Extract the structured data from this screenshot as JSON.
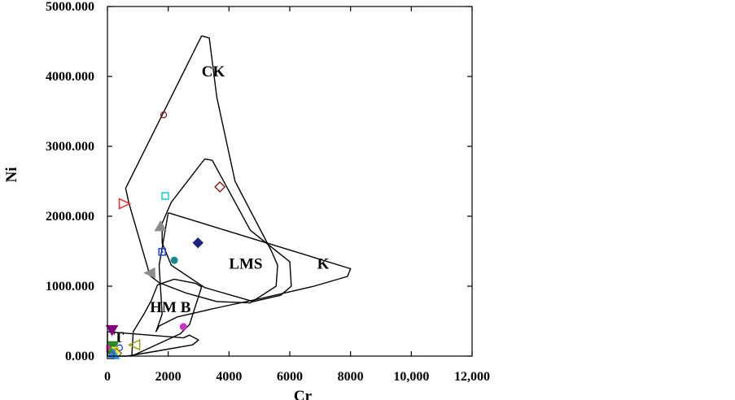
{
  "chart_data": {
    "type": "scatter",
    "title": "",
    "xlabel": "Cr",
    "ylabel": "Ni",
    "xlim": [
      0,
      12000
    ],
    "ylim": [
      0,
      5000
    ],
    "x_ticks": [
      0,
      2000,
      4000,
      6000,
      8000,
      10000,
      12000
    ],
    "x_tick_labels": [
      "0",
      "2000",
      "4000",
      "6000",
      "8000",
      "10,000",
      "12,000"
    ],
    "y_ticks": [
      0,
      1000,
      2000,
      3000,
      4000,
      5000
    ],
    "y_tick_labels": [
      "0.000",
      "1000.000",
      "2000.000",
      "3000.000",
      "4000.000",
      "5000.000"
    ],
    "grid": false,
    "regions": [
      {
        "label": "CK",
        "label_at": [
          3100,
          4000
        ],
        "points": [
          [
            3100,
            4580
          ],
          [
            3350,
            4550
          ],
          [
            3600,
            3700
          ],
          [
            4200,
            2500
          ],
          [
            5400,
            1500
          ],
          [
            5600,
            1300
          ],
          [
            5550,
            1000
          ],
          [
            4700,
            760
          ],
          [
            3600,
            780
          ],
          [
            2600,
            900
          ],
          [
            1700,
            1050
          ],
          [
            1400,
            1150
          ],
          [
            700,
            2200
          ],
          [
            600,
            2400
          ],
          [
            3100,
            4580
          ]
        ]
      },
      {
        "label": "LMS",
        "label_at": [
          4000,
          1250
        ],
        "points": [
          [
            3200,
            2820
          ],
          [
            3450,
            2800
          ],
          [
            4700,
            1800
          ],
          [
            6000,
            1350
          ],
          [
            6050,
            1000
          ],
          [
            5700,
            870
          ],
          [
            4800,
            780
          ],
          [
            3200,
            980
          ],
          [
            2100,
            1300
          ],
          [
            1800,
            1620
          ],
          [
            1800,
            1900
          ],
          [
            2100,
            2200
          ],
          [
            3200,
            2820
          ]
        ]
      },
      {
        "label": "K",
        "label_at": [
          6900,
          1250
        ],
        "points": [
          [
            2000,
            2050
          ],
          [
            8000,
            1250
          ],
          [
            7900,
            1140
          ],
          [
            6800,
            1000
          ],
          [
            5000,
            820
          ],
          [
            3500,
            680
          ],
          [
            2300,
            560
          ],
          [
            1700,
            430
          ],
          [
            1600,
            350
          ],
          [
            1800,
            600
          ],
          [
            1700,
            1300
          ],
          [
            2000,
            2050
          ]
        ]
      },
      {
        "label": "HM B",
        "label_at": [
          1400,
          630
        ],
        "points": [
          [
            1650,
            1020
          ],
          [
            2200,
            1100
          ],
          [
            2900,
            1040
          ],
          [
            3100,
            990
          ],
          [
            2700,
            450
          ],
          [
            2400,
            320
          ],
          [
            800,
            0
          ],
          [
            850,
            350
          ],
          [
            1200,
            600
          ],
          [
            1450,
            800
          ],
          [
            1650,
            1020
          ]
        ]
      },
      {
        "label": "T",
        "label_at": [
          200,
          200
        ],
        "points": [
          [
            0,
            350
          ],
          [
            500,
            330
          ],
          [
            2500,
            260
          ],
          [
            2700,
            300
          ],
          [
            3000,
            230
          ],
          [
            2800,
            160
          ],
          [
            1600,
            70
          ],
          [
            650,
            0
          ],
          [
            60,
            0
          ],
          [
            0,
            0
          ],
          [
            0,
            350
          ]
        ]
      }
    ],
    "series": [
      {
        "marker": "open-circle",
        "color": "#8b1a1a",
        "points": [
          [
            1850,
            3450
          ]
        ]
      },
      {
        "marker": "open-diamond",
        "color": "#8b1a1a",
        "points": [
          [
            3700,
            2420
          ]
        ]
      },
      {
        "marker": "open-square",
        "color": "#19c8d2",
        "points": [
          [
            1900,
            2290
          ]
        ]
      },
      {
        "marker": "open-triangle-right",
        "color": "#e53030",
        "points": [
          [
            550,
            2180
          ]
        ]
      },
      {
        "marker": "filled-triangle-up",
        "color": "#8c8c8c",
        "points": [
          [
            1750,
            1850
          ]
        ]
      },
      {
        "marker": "filled-diamond",
        "color": "#1a237e",
        "points": [
          [
            2980,
            1620
          ]
        ]
      },
      {
        "marker": "dotted-square",
        "color": "#1e3fd8",
        "points": [
          [
            1800,
            1490
          ]
        ]
      },
      {
        "marker": "filled-circle",
        "color": "#1a8a8a",
        "points": [
          [
            2200,
            1370
          ]
        ]
      },
      {
        "marker": "filled-triangle-left",
        "color": "#8c8c8c",
        "points": [
          [
            1400,
            1190
          ]
        ]
      },
      {
        "marker": "filled-circle",
        "color": "#c832c8",
        "points": [
          [
            2500,
            420
          ]
        ]
      },
      {
        "marker": "filled-triangle-down",
        "color": "#800080",
        "points": [
          [
            150,
            380
          ]
        ]
      },
      {
        "marker": "open-triangle-left",
        "color": "#9a9a20",
        "points": [
          [
            900,
            160
          ]
        ]
      },
      {
        "marker": "filled-square",
        "color": "#ff2fa8",
        "points": [
          [
            80,
            110
          ]
        ]
      },
      {
        "marker": "open-circle",
        "color": "#1e3fd8",
        "points": [
          [
            400,
            120
          ]
        ]
      },
      {
        "marker": "filled-triangle-down",
        "color": "#2a8a2a",
        "points": [
          [
            180,
            150
          ]
        ]
      },
      {
        "marker": "filled-square",
        "color": "#e6e61e",
        "points": [
          [
            250,
            80
          ]
        ]
      },
      {
        "marker": "filled-circle",
        "color": "#3c8c3c",
        "points": [
          [
            120,
            60
          ]
        ]
      },
      {
        "marker": "open-diamond",
        "color": "#8b6914",
        "points": [
          [
            300,
            40
          ]
        ]
      },
      {
        "marker": "filled-triangle-up",
        "color": "#1e90ff",
        "points": [
          [
            200,
            20
          ]
        ]
      },
      {
        "marker": "open-square",
        "color": "#555555",
        "points": [
          [
            100,
            10
          ]
        ]
      }
    ]
  }
}
